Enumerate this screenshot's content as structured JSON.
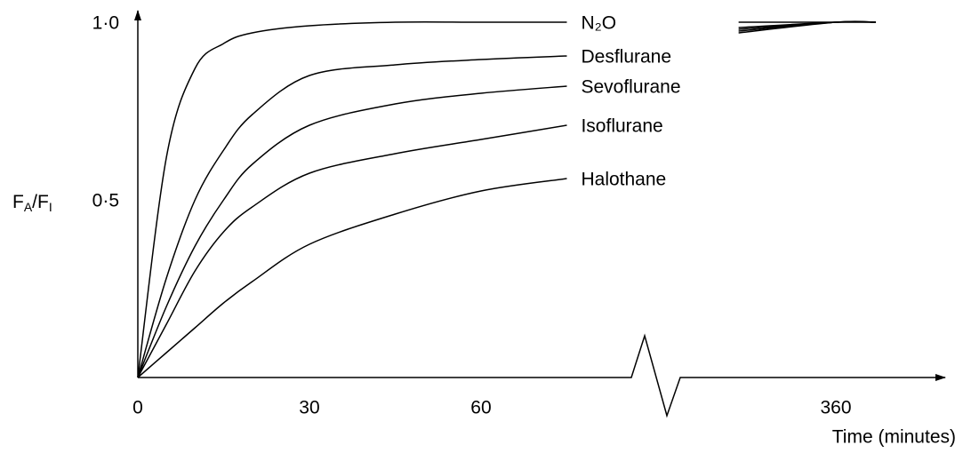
{
  "chart_data": {
    "type": "line",
    "ylabel": [
      "F",
      "A",
      "/F",
      "I"
    ],
    "xlabel": "Time (minutes)",
    "x": [
      0,
      5,
      10,
      15,
      20,
      30,
      45,
      60,
      75,
      343,
      360,
      367
    ],
    "xbreak": [
      80,
      340
    ],
    "xlim": [
      0,
      379
    ],
    "xticks": [
      0,
      30,
      60,
      360
    ],
    "ylim": [
      0,
      1
    ],
    "yticks": [
      {
        "value": 0.5,
        "label": "0·5"
      },
      {
        "value": 1,
        "label": "1·0"
      }
    ],
    "grid": false,
    "series": [
      {
        "name": "N₂O",
        "color": "#000000",
        "values": [
          0,
          0.62,
          0.87,
          0.94,
          0.97,
          0.99,
          1.0,
          1.0,
          1.0,
          1.0,
          1.0,
          1.0
        ]
      },
      {
        "name": "Desflurane",
        "color": "#000000",
        "values": [
          0,
          0.28,
          0.5,
          0.64,
          0.74,
          0.85,
          0.88,
          0.895,
          0.905,
          0.985,
          1.0,
          1.0
        ]
      },
      {
        "name": "Sevoflurane",
        "color": "#000000",
        "values": [
          0,
          0.2,
          0.37,
          0.5,
          0.6,
          0.71,
          0.77,
          0.8,
          0.82,
          0.98,
          1.0,
          1.0
        ]
      },
      {
        "name": "Isoflurane",
        "color": "#000000",
        "values": [
          0,
          0.15,
          0.3,
          0.41,
          0.48,
          0.575,
          0.63,
          0.67,
          0.71,
          0.975,
          1.0,
          1.0
        ]
      },
      {
        "name": "Halothane",
        "color": "#000000",
        "values": [
          0,
          0.07,
          0.14,
          0.21,
          0.27,
          0.375,
          0.46,
          0.525,
          0.56,
          0.97,
          1.0,
          1.0
        ]
      }
    ]
  }
}
